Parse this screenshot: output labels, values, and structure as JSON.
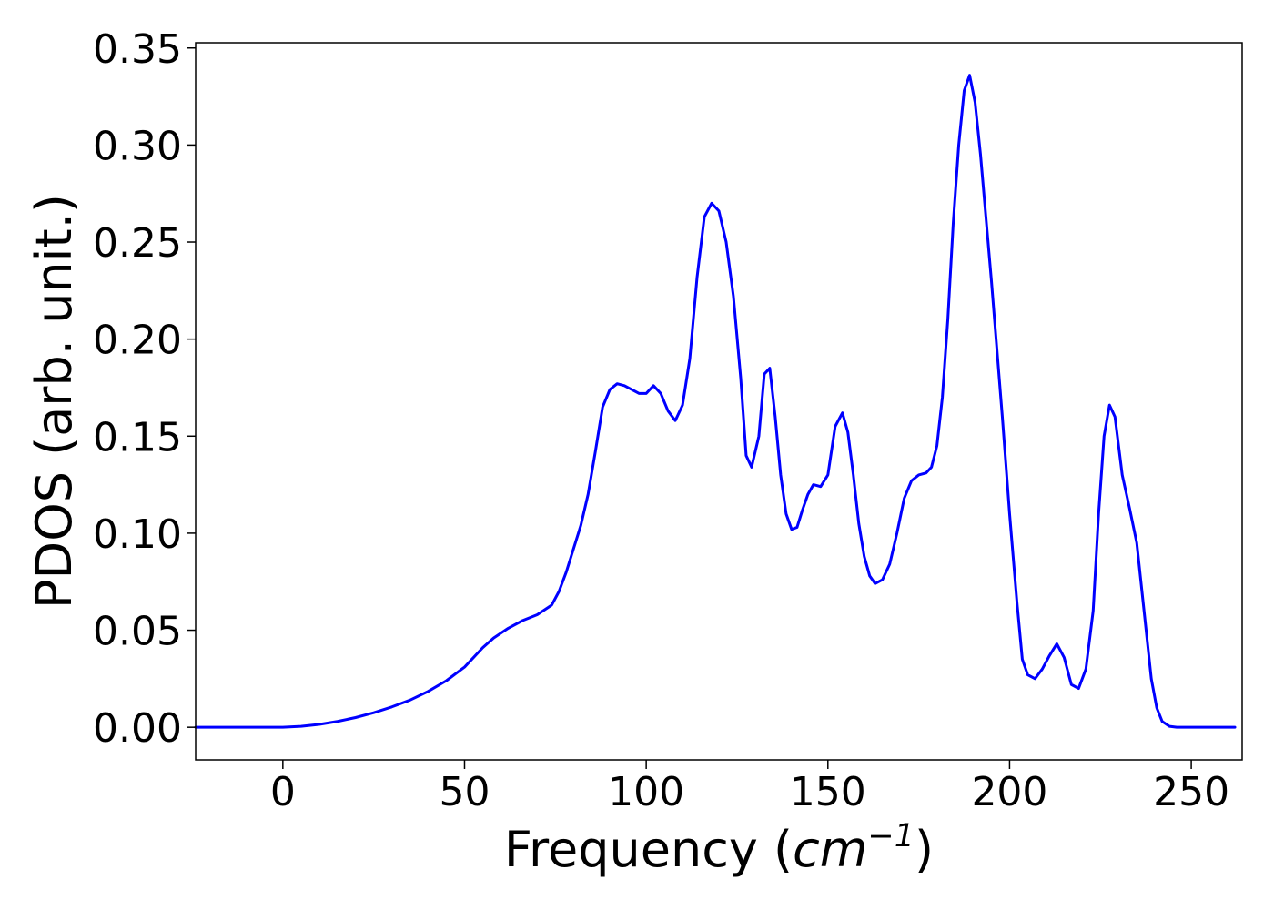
{
  "chart_data": {
    "type": "line",
    "title": "",
    "xlabel": {
      "main": "Frequency (",
      "unit": "cm",
      "exponent": "−1",
      "close": ")"
    },
    "ylabel": "PDOS (arb. unit.)",
    "xlim": [
      -24,
      264
    ],
    "ylim": [
      -0.0168,
      0.3527
    ],
    "xticks": [
      0,
      50,
      100,
      150,
      200,
      250
    ],
    "xtick_labels": [
      "0",
      "50",
      "100",
      "150",
      "200",
      "250"
    ],
    "yticks": [
      0.0,
      0.05,
      0.1,
      0.15,
      0.2,
      0.25,
      0.3,
      0.35
    ],
    "ytick_labels": [
      "0.00",
      "0.05",
      "0.10",
      "0.15",
      "0.20",
      "0.25",
      "0.30",
      "0.35"
    ],
    "grid": false,
    "series": [
      {
        "color": "#0000ff",
        "x": [
          -24,
          -10,
          0,
          5,
          10,
          15,
          20,
          25,
          30,
          35,
          40,
          45,
          50,
          55,
          58,
          62,
          66,
          70,
          74,
          76,
          78,
          80,
          82,
          84,
          86,
          88,
          90,
          92,
          94,
          96,
          98,
          100,
          102,
          104,
          106,
          108,
          110,
          112,
          114,
          116,
          118,
          120,
          122,
          124,
          126,
          127.5,
          129,
          131,
          132.5,
          134,
          135.5,
          137,
          138.5,
          140,
          141.5,
          143,
          144.5,
          146,
          148,
          150,
          152,
          154,
          155.5,
          157,
          158.5,
          160,
          161.5,
          163,
          165,
          167,
          169,
          171,
          173,
          175,
          177,
          178.5,
          180,
          181.5,
          183,
          184.5,
          186,
          187.5,
          189,
          190.5,
          192,
          195,
          198,
          200,
          202,
          203.5,
          205,
          207,
          209,
          211,
          213,
          215,
          217,
          219,
          221,
          223,
          224.5,
          226,
          227.5,
          229,
          231,
          233,
          235,
          237,
          239,
          240.5,
          242,
          244,
          246,
          250,
          262
        ],
        "y": [
          0,
          0,
          0,
          0.0005,
          0.0015,
          0.003,
          0.005,
          0.0075,
          0.0105,
          0.014,
          0.0185,
          0.024,
          0.031,
          0.041,
          0.046,
          0.051,
          0.055,
          0.058,
          0.063,
          0.07,
          0.08,
          0.092,
          0.104,
          0.12,
          0.142,
          0.165,
          0.174,
          0.177,
          0.176,
          0.174,
          0.172,
          0.172,
          0.176,
          0.172,
          0.163,
          0.158,
          0.166,
          0.19,
          0.232,
          0.263,
          0.27,
          0.266,
          0.25,
          0.222,
          0.18,
          0.14,
          0.134,
          0.15,
          0.182,
          0.185,
          0.16,
          0.13,
          0.11,
          0.102,
          0.103,
          0.112,
          0.12,
          0.125,
          0.124,
          0.13,
          0.155,
          0.162,
          0.152,
          0.13,
          0.105,
          0.088,
          0.078,
          0.074,
          0.076,
          0.084,
          0.1,
          0.118,
          0.127,
          0.13,
          0.131,
          0.134,
          0.145,
          0.17,
          0.21,
          0.26,
          0.3,
          0.328,
          0.336,
          0.322,
          0.295,
          0.23,
          0.16,
          0.11,
          0.065,
          0.035,
          0.027,
          0.025,
          0.03,
          0.037,
          0.043,
          0.036,
          0.022,
          0.02,
          0.03,
          0.06,
          0.11,
          0.15,
          0.166,
          0.16,
          0.13,
          0.113,
          0.095,
          0.06,
          0.025,
          0.01,
          0.003,
          0.0005,
          0,
          0,
          0
        ]
      }
    ]
  }
}
